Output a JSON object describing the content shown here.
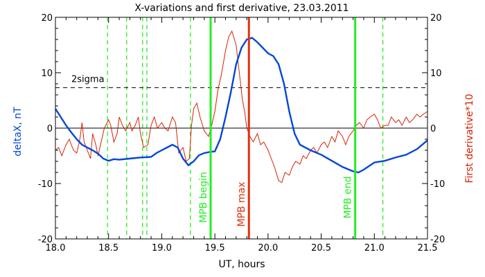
{
  "chart_data": {
    "type": "line",
    "title": "X-variations and first derivative, 23.03.2011",
    "xlabel": "UT, hours",
    "ylabel_left": "deltaX, nT",
    "ylabel_right": "First derivative*10",
    "xlim": [
      18.0,
      21.5
    ],
    "ylim": [
      -20,
      20
    ],
    "x_ticks": [
      "18.0",
      "18.5",
      "19.0",
      "19.5",
      "20.0",
      "20.5",
      "21.0",
      "21.5"
    ],
    "y_ticks_left": [
      "-20",
      "-10",
      "0",
      "10",
      "20"
    ],
    "y_ticks_right": [
      "-20",
      "-10",
      "0",
      "10",
      "20"
    ],
    "grid": false,
    "colors": {
      "deltaX": "#0046d8",
      "derivative": "#d82000",
      "markers": "#22ee22",
      "max_marker": "#e03010"
    },
    "sigma": {
      "label": "2sigma",
      "y": 7.3
    },
    "zero_line": 0,
    "dashed_markers": [
      18.49,
      18.67,
      18.82,
      18.86,
      19.27,
      21.08
    ],
    "markers": [
      {
        "label": "MPB begin",
        "x": 19.46
      },
      {
        "label": "MPB max",
        "x": 19.82
      },
      {
        "label": "MPB end",
        "x": 20.82
      }
    ],
    "series": [
      {
        "key": "deltaX",
        "x": [
          18.0,
          18.05,
          18.1,
          18.15,
          18.2,
          18.25,
          18.3,
          18.35,
          18.4,
          18.45,
          18.5,
          18.55,
          18.6,
          18.7,
          18.8,
          18.9,
          18.95,
          19.0,
          19.05,
          19.1,
          19.15,
          19.2,
          19.25,
          19.3,
          19.35,
          19.4,
          19.45,
          19.5,
          19.55,
          19.6,
          19.65,
          19.7,
          19.75,
          19.8,
          19.85,
          19.9,
          19.95,
          20.0,
          20.05,
          20.1,
          20.15,
          20.2,
          20.25,
          20.3,
          20.4,
          20.5,
          20.6,
          20.7,
          20.8,
          20.85,
          20.9,
          21.0,
          21.1,
          21.2,
          21.3,
          21.4,
          21.5
        ],
        "y": [
          3.5,
          2.0,
          0.5,
          -0.8,
          -2.0,
          -3.0,
          -3.5,
          -4.0,
          -4.6,
          -5.5,
          -5.9,
          -5.6,
          -5.7,
          -5.5,
          -5.3,
          -5.2,
          -4.5,
          -4.0,
          -3.5,
          -3.0,
          -3.5,
          -5.5,
          -6.7,
          -6.0,
          -4.9,
          -4.5,
          -4.3,
          -4.2,
          -2.0,
          2.0,
          6.5,
          11.5,
          14.5,
          16.0,
          16.3,
          15.5,
          14.5,
          13.5,
          13.0,
          11.5,
          8.0,
          3.0,
          -1.0,
          -3.0,
          -4.0,
          -4.8,
          -5.9,
          -7.0,
          -7.8,
          -8.0,
          -7.5,
          -6.2,
          -5.9,
          -5.3,
          -4.8,
          -3.8,
          -2.2
        ]
      },
      {
        "key": "derivative",
        "x": [
          18.0,
          18.03,
          18.06,
          18.1,
          18.13,
          18.17,
          18.2,
          18.23,
          18.25,
          18.27,
          18.3,
          18.33,
          18.35,
          18.38,
          18.4,
          18.43,
          18.46,
          18.5,
          18.52,
          18.55,
          18.58,
          18.6,
          18.63,
          18.66,
          18.7,
          18.72,
          18.75,
          18.78,
          18.8,
          18.83,
          18.87,
          18.9,
          18.93,
          18.96,
          19.0,
          19.03,
          19.06,
          19.1,
          19.13,
          19.16,
          19.2,
          19.23,
          19.26,
          19.28,
          19.3,
          19.33,
          19.36,
          19.4,
          19.44,
          19.47,
          19.5,
          19.53,
          19.56,
          19.6,
          19.63,
          19.66,
          19.7,
          19.73,
          19.76,
          19.78,
          19.8,
          19.83,
          19.86,
          19.9,
          19.93,
          19.96,
          20.0,
          20.03,
          20.06,
          20.1,
          20.13,
          20.16,
          20.2,
          20.23,
          20.26,
          20.3,
          20.33,
          20.36,
          20.4,
          20.43,
          20.46,
          20.5,
          20.53,
          20.56,
          20.6,
          20.63,
          20.66,
          20.7,
          20.73,
          20.76,
          20.8,
          20.83,
          20.86,
          20.9,
          20.93,
          20.96,
          21.0,
          21.03,
          21.06,
          21.1,
          21.13,
          21.16,
          21.2,
          21.23,
          21.26,
          21.3,
          21.33,
          21.36,
          21.4,
          21.43,
          21.46,
          21.5
        ],
        "y": [
          -4.0,
          -3.5,
          -5.0,
          -3.0,
          -2.0,
          -4.0,
          -4.5,
          -2.0,
          1.0,
          -2.5,
          -4.0,
          -5.5,
          -1.0,
          -3.0,
          -5.0,
          -2.5,
          0.0,
          1.5,
          0.5,
          -2.5,
          -1.0,
          2.0,
          0.5,
          -0.5,
          1.0,
          -0.5,
          0.5,
          2.0,
          -1.0,
          -3.5,
          -3.0,
          0.5,
          2.0,
          0.0,
          1.0,
          0.0,
          -0.5,
          2.0,
          1.0,
          -4.5,
          -3.5,
          -6.0,
          -5.5,
          0.5,
          3.5,
          4.5,
          2.0,
          -0.5,
          -1.5,
          0.5,
          3.0,
          7.0,
          9.5,
          14.0,
          16.5,
          17.5,
          15.0,
          10.0,
          5.0,
          3.0,
          0.0,
          -1.5,
          -2.5,
          -1.0,
          -3.0,
          -2.5,
          -4.0,
          -5.5,
          -7.0,
          -9.5,
          -9.8,
          -8.0,
          -8.5,
          -7.0,
          -6.0,
          -6.5,
          -5.0,
          -5.5,
          -4.0,
          -3.5,
          -4.5,
          -3.0,
          -2.5,
          -3.5,
          -1.5,
          -2.5,
          -0.5,
          -1.5,
          -3.0,
          -1.5,
          -0.5,
          0.5,
          1.0,
          0.0,
          1.5,
          2.0,
          2.5,
          1.5,
          0.0,
          0.5,
          0.5,
          2.0,
          1.0,
          1.5,
          0.5,
          2.0,
          1.0,
          1.5,
          2.5,
          2.0,
          2.5,
          3.0
        ]
      }
    ]
  }
}
